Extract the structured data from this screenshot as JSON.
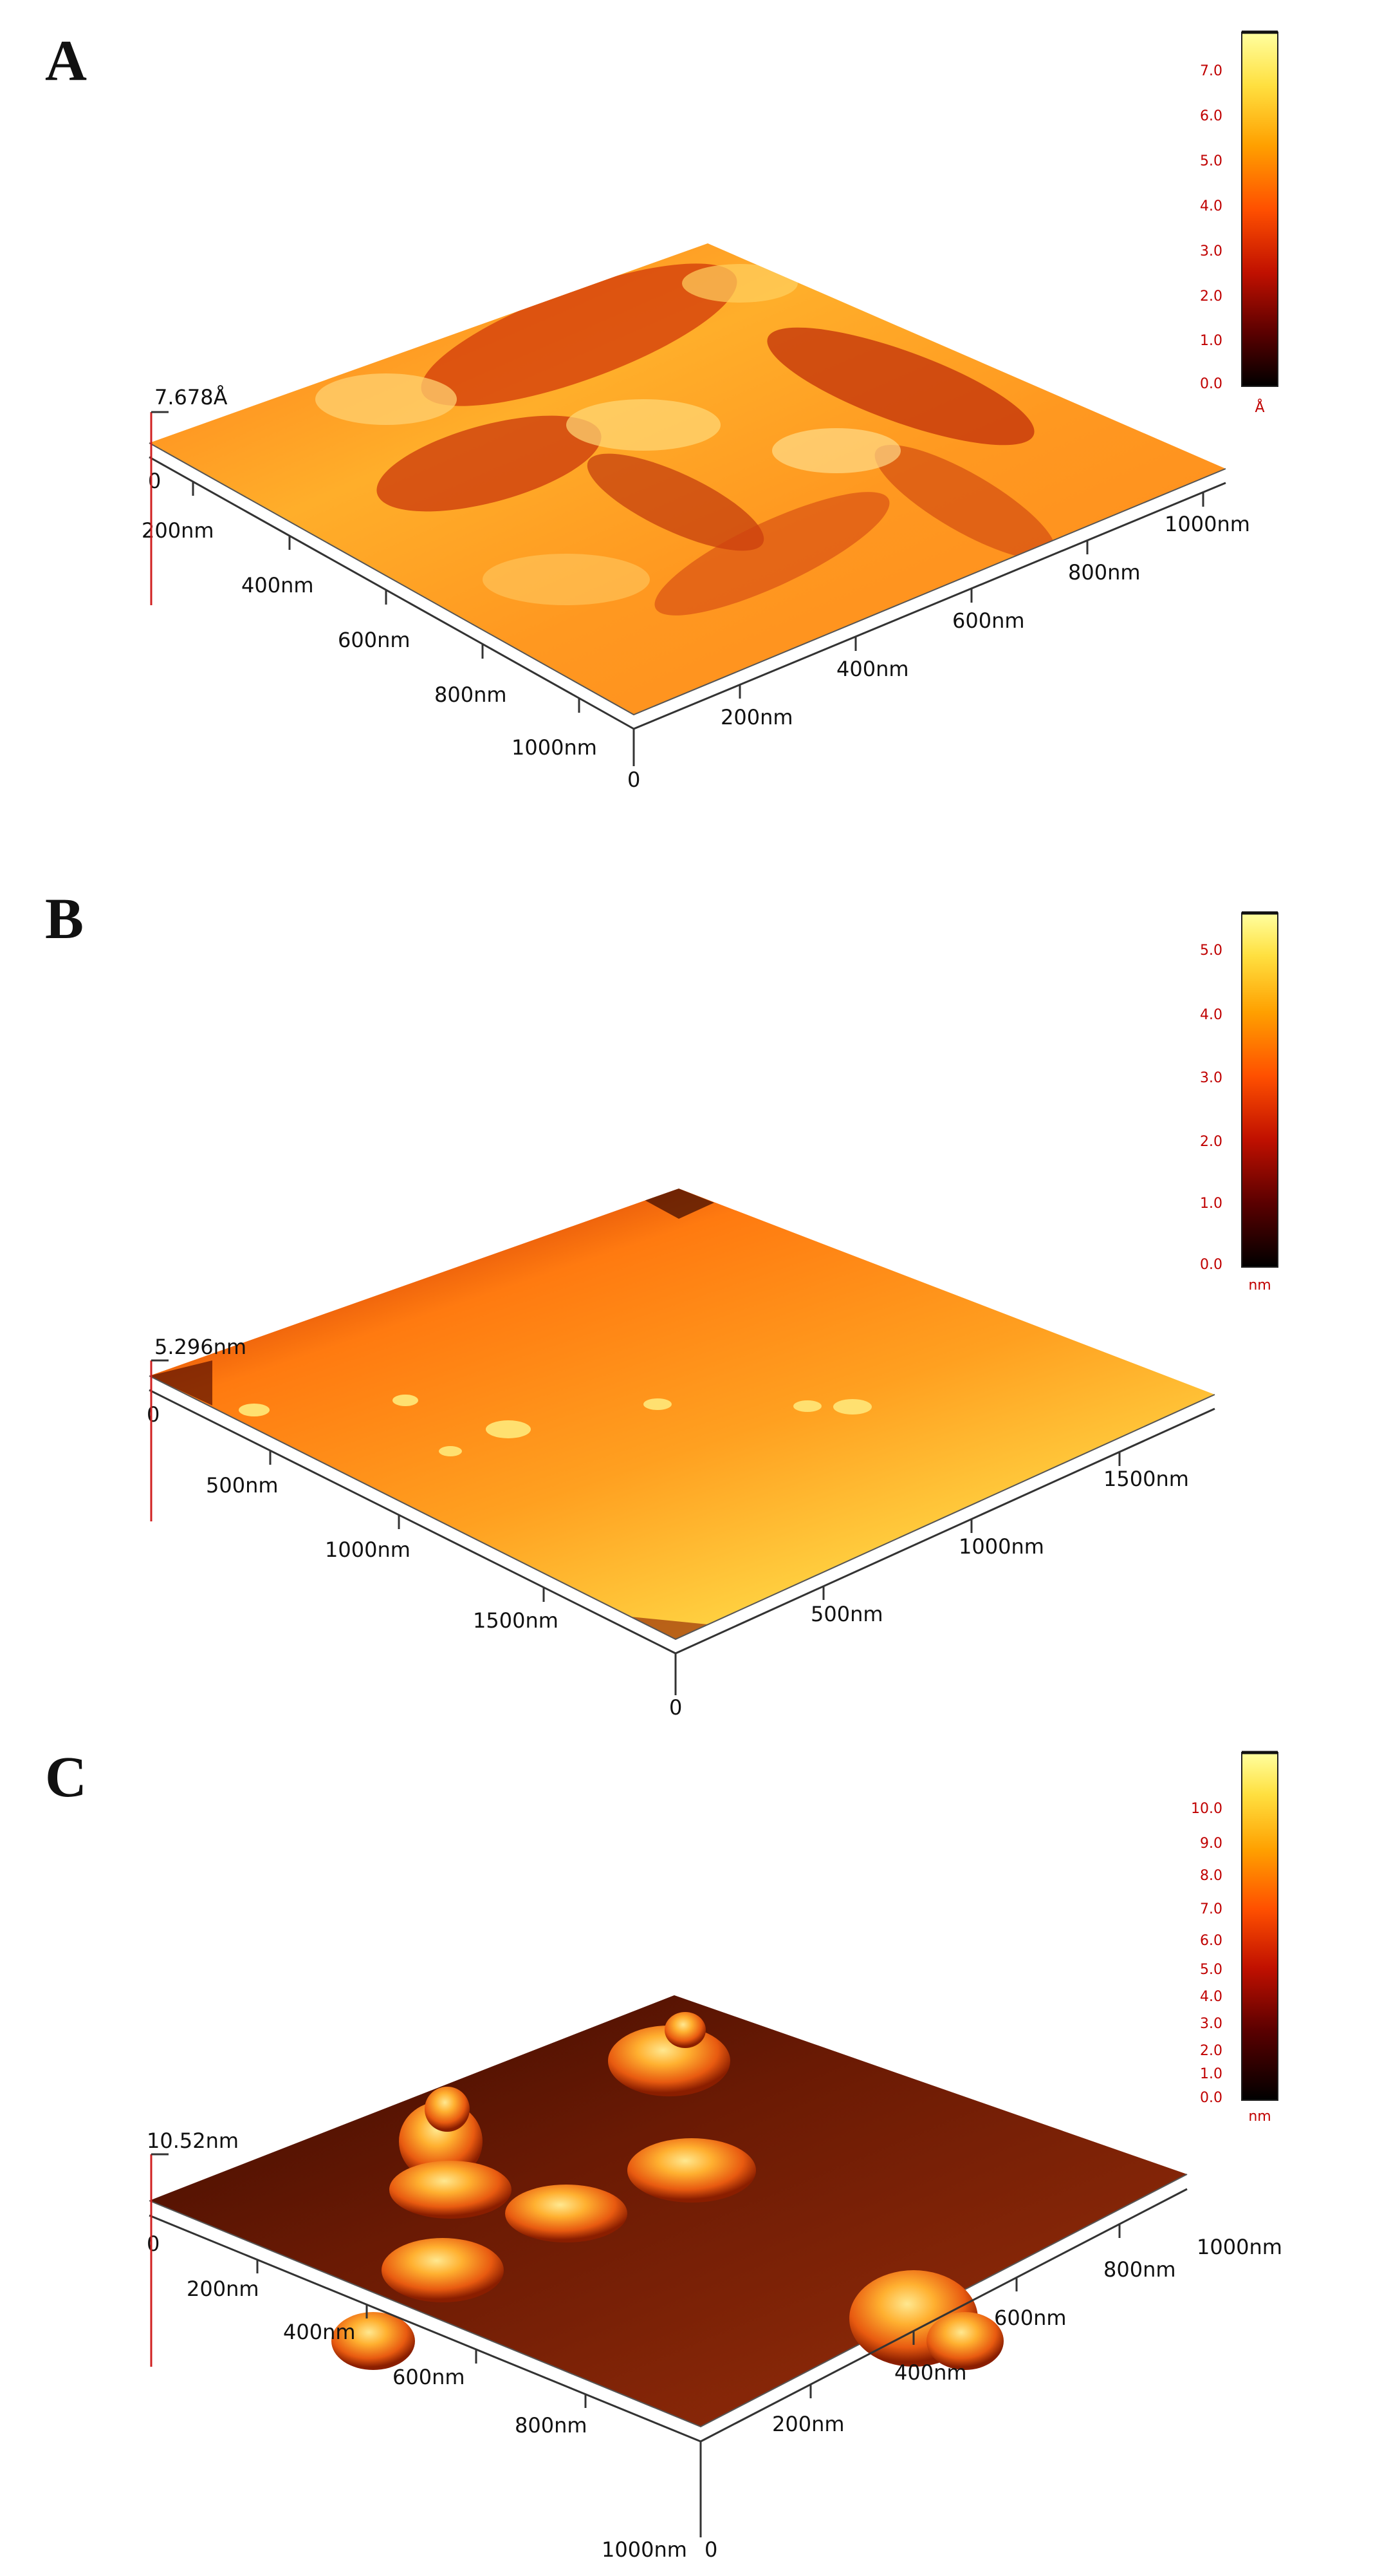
{
  "figure": {
    "panels": [
      {
        "id": "A",
        "label": "A",
        "z_max_label": "7.678Å",
        "front_axis_ticks": [
          "0",
          "200nm",
          "400nm",
          "600nm",
          "800nm",
          "1000nm"
        ],
        "right_axis_ticks": [
          "0",
          "200nm",
          "400nm",
          "600nm",
          "800nm",
          "1000nm"
        ],
        "colorbar": {
          "ticks": [
            "0.0",
            "1.0",
            "2.0",
            "3.0",
            "4.0",
            "5.0",
            "6.0",
            "7.0"
          ],
          "unit": "Å",
          "max": 7.678
        },
        "surface": "rough-orange"
      },
      {
        "id": "B",
        "label": "B",
        "z_max_label": "5.296nm",
        "front_axis_ticks": [
          "0",
          "500nm",
          "1000nm",
          "1500nm"
        ],
        "right_axis_ticks": [
          "0",
          "500nm",
          "1000nm",
          "1500nm"
        ],
        "colorbar": {
          "ticks": [
            "0.0",
            "1.0",
            "2.0",
            "3.0",
            "4.0",
            "5.0"
          ],
          "unit": "nm",
          "max": 5.296
        },
        "surface": "smooth-bright"
      },
      {
        "id": "C",
        "label": "C",
        "z_max_label": "10.52nm",
        "front_axis_ticks": [
          "0",
          "200nm",
          "400nm",
          "600nm",
          "800nm",
          "1000nm"
        ],
        "right_axis_ticks": [
          "0",
          "200nm",
          "400nm",
          "600nm",
          "800nm",
          "1000nm"
        ],
        "colorbar": {
          "ticks": [
            "0.0",
            "1.0",
            "2.0",
            "3.0",
            "4.0",
            "5.0",
            "6.0",
            "7.0",
            "8.0",
            "9.0",
            "10.0"
          ],
          "unit": "nm",
          "max": 10.52
        },
        "surface": "dark-with-peaks"
      }
    ],
    "colormap": [
      "#000000",
      "#5a0000",
      "#c01000",
      "#ff5000",
      "#ffa000",
      "#ffe040",
      "#ffffa0"
    ]
  }
}
